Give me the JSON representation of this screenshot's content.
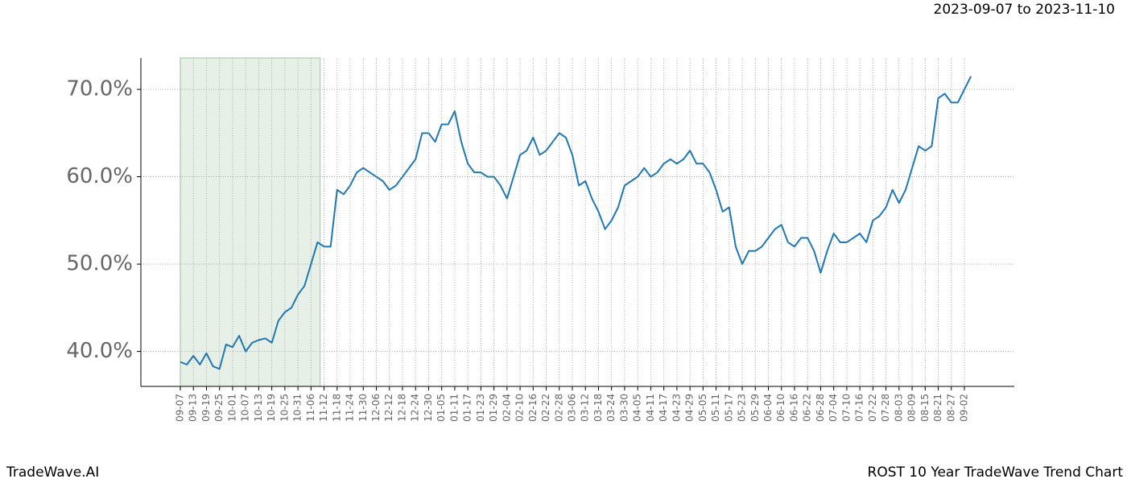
{
  "chart_data": {
    "type": "line",
    "title": "2023-09-07 to 2023-11-10",
    "footer_left": "TradeWave.AI",
    "footer_right": "ROST 10 Year TradeWave Trend Chart",
    "categories": [
      "09-07",
      null,
      "09-13",
      null,
      "09-19",
      null,
      "09-25",
      null,
      "10-01",
      null,
      "10-07",
      null,
      "10-13",
      null,
      "10-19",
      null,
      "10-25",
      null,
      "10-31",
      null,
      "11-06",
      null,
      "11-12",
      null,
      "11-18",
      null,
      "11-24",
      null,
      "11-30",
      null,
      "12-06",
      null,
      "12-12",
      null,
      "12-18",
      null,
      "12-24",
      null,
      "12-30",
      null,
      "01-05",
      null,
      "01-11",
      null,
      "01-17",
      null,
      "01-23",
      null,
      "01-29",
      null,
      "02-04",
      null,
      "02-10",
      null,
      "02-16",
      null,
      "02-22",
      null,
      "02-28",
      null,
      "03-06",
      null,
      "03-12",
      null,
      "03-18",
      null,
      "03-24",
      null,
      "03-30",
      null,
      "04-05",
      null,
      "04-11",
      null,
      "04-17",
      null,
      "04-23",
      null,
      "04-29",
      null,
      "05-05",
      null,
      "05-11",
      null,
      "05-17",
      null,
      "05-23",
      null,
      "05-29",
      null,
      "06-04",
      null,
      "06-10",
      null,
      "06-16",
      null,
      "06-22",
      null,
      "06-28",
      null,
      "07-04",
      null,
      "07-10",
      null,
      "07-16",
      null,
      "07-22",
      null,
      "07-28",
      null,
      "08-03",
      null,
      "08-09",
      null,
      "08-15",
      null,
      "08-21",
      null,
      "08-27",
      null,
      "09-02",
      null
    ],
    "series": [
      {
        "color": "#1f77b4",
        "values": [
          38.8,
          38.5,
          39.5,
          38.5,
          39.8,
          38.3,
          38.0,
          40.8,
          40.5,
          41.8,
          40.0,
          41.0,
          41.3,
          41.5,
          41.0,
          43.5,
          44.5,
          45.0,
          46.5,
          47.5,
          50.0,
          52.5,
          52.0,
          52.0,
          58.5,
          58.0,
          59.0,
          60.5,
          61.0,
          60.5,
          60.0,
          59.5,
          58.5,
          59.0,
          60.0,
          61.0,
          62.0,
          65.0,
          65.0,
          64.0,
          66.0,
          66.0,
          67.5,
          64.0,
          61.5,
          60.5,
          60.5,
          60.0,
          60.0,
          59.0,
          57.5,
          60.0,
          62.5,
          63.0,
          64.5,
          62.5,
          63.0,
          64.0,
          65.0,
          64.5,
          62.5,
          59.0,
          59.5,
          57.5,
          56.0,
          54.0,
          55.0,
          56.5,
          59.0,
          59.5,
          60.0,
          61.0,
          60.0,
          60.5,
          61.5,
          62.0,
          61.5,
          62.0,
          63.0,
          61.5,
          61.5,
          60.5,
          58.5,
          56.0,
          56.5,
          52.0,
          50.0,
          51.5,
          51.5,
          52.0,
          53.0,
          54.0,
          54.5,
          52.5,
          52.0,
          53.0,
          53.0,
          51.5,
          49.0,
          51.5,
          53.5,
          52.5,
          52.5,
          53.0,
          53.5,
          52.5,
          55.0,
          55.5,
          56.5,
          58.5,
          57.0,
          58.5,
          61.0,
          63.5,
          63.0,
          63.5,
          69.0,
          69.5,
          68.5,
          68.5,
          70.0,
          71.5
        ]
      }
    ],
    "highlight_xlim": [
      0,
      21.4
    ],
    "highlight_color": "#e6f0e6",
    "ylim": [
      36.0,
      73.6
    ],
    "yticks": [
      {
        "value": 40,
        "label": "40.0%"
      },
      {
        "value": 50,
        "label": "50.0%"
      },
      {
        "value": 60,
        "label": "60.0%"
      },
      {
        "value": 70,
        "label": "70.0%"
      }
    ],
    "grid": true
  }
}
